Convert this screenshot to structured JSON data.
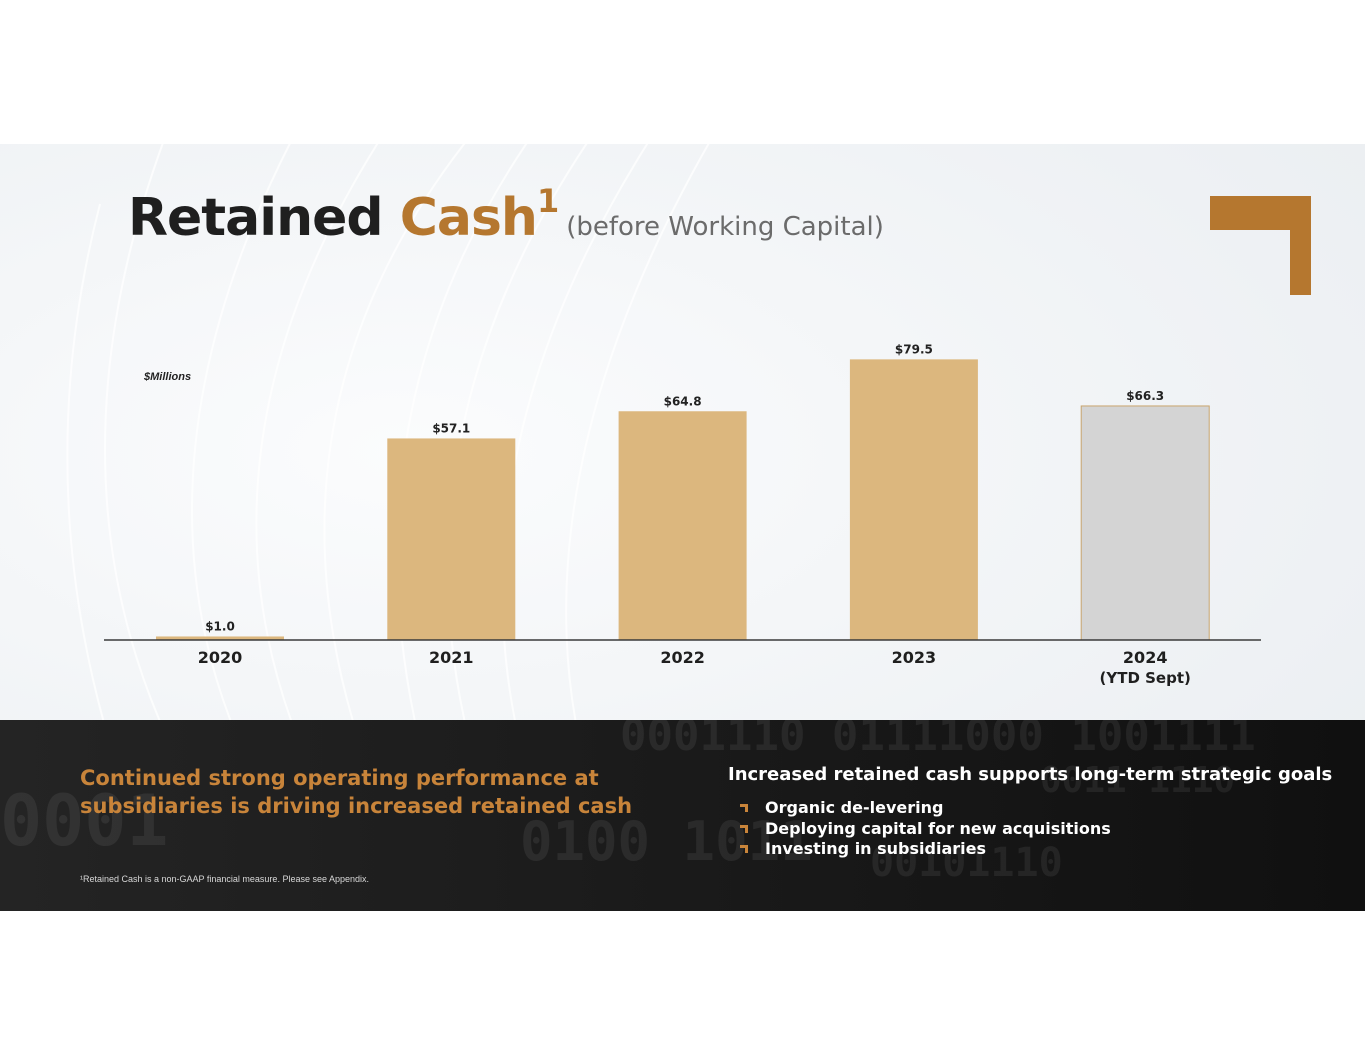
{
  "title": {
    "main": "Retained ",
    "accent": "Cash",
    "superscript": "1",
    "subtitle": "(before Working Capital)"
  },
  "colors": {
    "accent": "#b5772f",
    "bar_actual": "#dcb77e",
    "bar_ytd": "#d4d4d4",
    "footer_headline": "#c8843a"
  },
  "chart_data": {
    "type": "bar",
    "unit_label": "$Millions",
    "categories": [
      "2020",
      "2021",
      "2022",
      "2023",
      "2024"
    ],
    "category_sublabels": [
      "",
      "",
      "",
      "",
      "(YTD Sept)"
    ],
    "values": [
      1.0,
      57.1,
      64.8,
      79.5,
      66.3
    ],
    "data_labels": [
      "$1.0",
      "$57.1",
      "$64.8",
      "$79.5",
      "$66.3"
    ],
    "highlight": [
      false,
      false,
      false,
      false,
      true
    ],
    "ylim": [
      0,
      80
    ],
    "grid": false,
    "legend": "none"
  },
  "footer": {
    "headline": "Continued strong operating performance at subsidiaries is driving increased retained cash",
    "footnote": "¹Retained Cash is a non-GAAP financial measure. Please see Appendix.",
    "goals_title": "Increased retained cash supports long-term strategic goals",
    "goals": [
      "Organic de-levering",
      "Deploying capital for new acquisitions",
      "Investing in subsidiaries"
    ]
  },
  "background_binary": [
    "0001110 01111000 1001111",
    "0011 1110",
    "0100 1011",
    "00101110",
    "0001"
  ]
}
